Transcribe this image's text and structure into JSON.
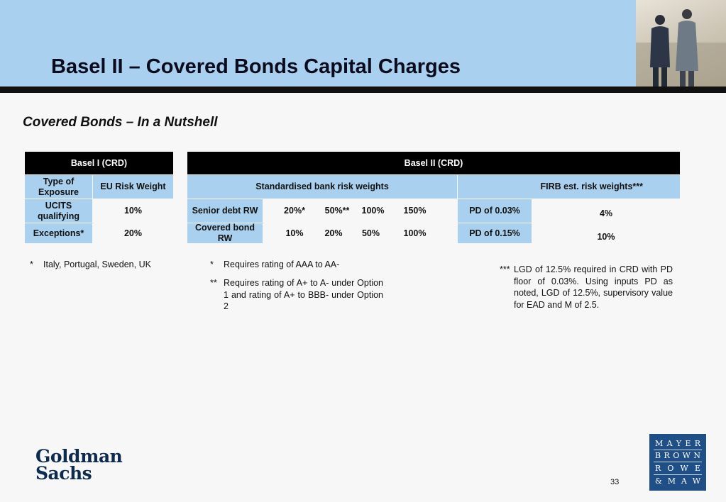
{
  "slide": {
    "title": "Basel II – Covered Bonds Capital Charges",
    "subtitle": "Covered Bonds – In a Nutshell",
    "page_number": "33"
  },
  "basel1_table": {
    "header": "Basel I (CRD)",
    "col1_header": "Type of Exposure",
    "col2_header": "EU Risk Weight",
    "rows": [
      {
        "type": "UCITS qualifying",
        "weight": "10%"
      },
      {
        "type": "Exceptions*",
        "weight": "20%"
      }
    ]
  },
  "basel2_table": {
    "header": "Basel II (CRD)",
    "standardised_header": "Standardised bank risk weights",
    "firb_header": "FIRB est. risk weights***",
    "rows": [
      {
        "label": "Senior debt RW",
        "v1": "20%*",
        "v2": "50%**",
        "v3": "100%",
        "v4": "150%",
        "pd": "PD of 0.03%",
        "firb": "4%"
      },
      {
        "label": "Covered bond RW",
        "v1": "10%",
        "v2": "20%",
        "v3": "50%",
        "v4": "100%",
        "pd": "PD of 0.15%",
        "firb": "10%"
      }
    ]
  },
  "footnotes": {
    "f1_mark": "*",
    "f1_text": "Italy, Portugal, Sweden, UK",
    "f2_mark": "*",
    "f2_text": "Requires rating of AAA to AA-",
    "f3_mark": "**",
    "f3_text": "Requires rating of A+ to A- under Option 1 and rating of A+ to BBB- under Option 2",
    "f4_mark": "***",
    "f4_text": "LGD of 12.5% required in CRD with PD floor of 0.03%. Using inputs PD as noted, LGD of 12.5%, supervisory value for EAD and M of 2.5."
  },
  "logos": {
    "gs_line1": "Goldman",
    "gs_line2": "Sachs",
    "mbrm_rows": [
      [
        "M",
        "A",
        "Y",
        "E",
        "R"
      ],
      [
        "B",
        "R",
        "O",
        "W",
        "N"
      ],
      [
        "R",
        "O",
        "W",
        "E"
      ],
      [
        "&",
        "M",
        "A",
        "W"
      ]
    ]
  },
  "colors": {
    "header_band": "#a9d1ef",
    "table_header": "#000000",
    "table_blue": "#a9d1ef",
    "mbrm_blue": "#1f4f86"
  }
}
